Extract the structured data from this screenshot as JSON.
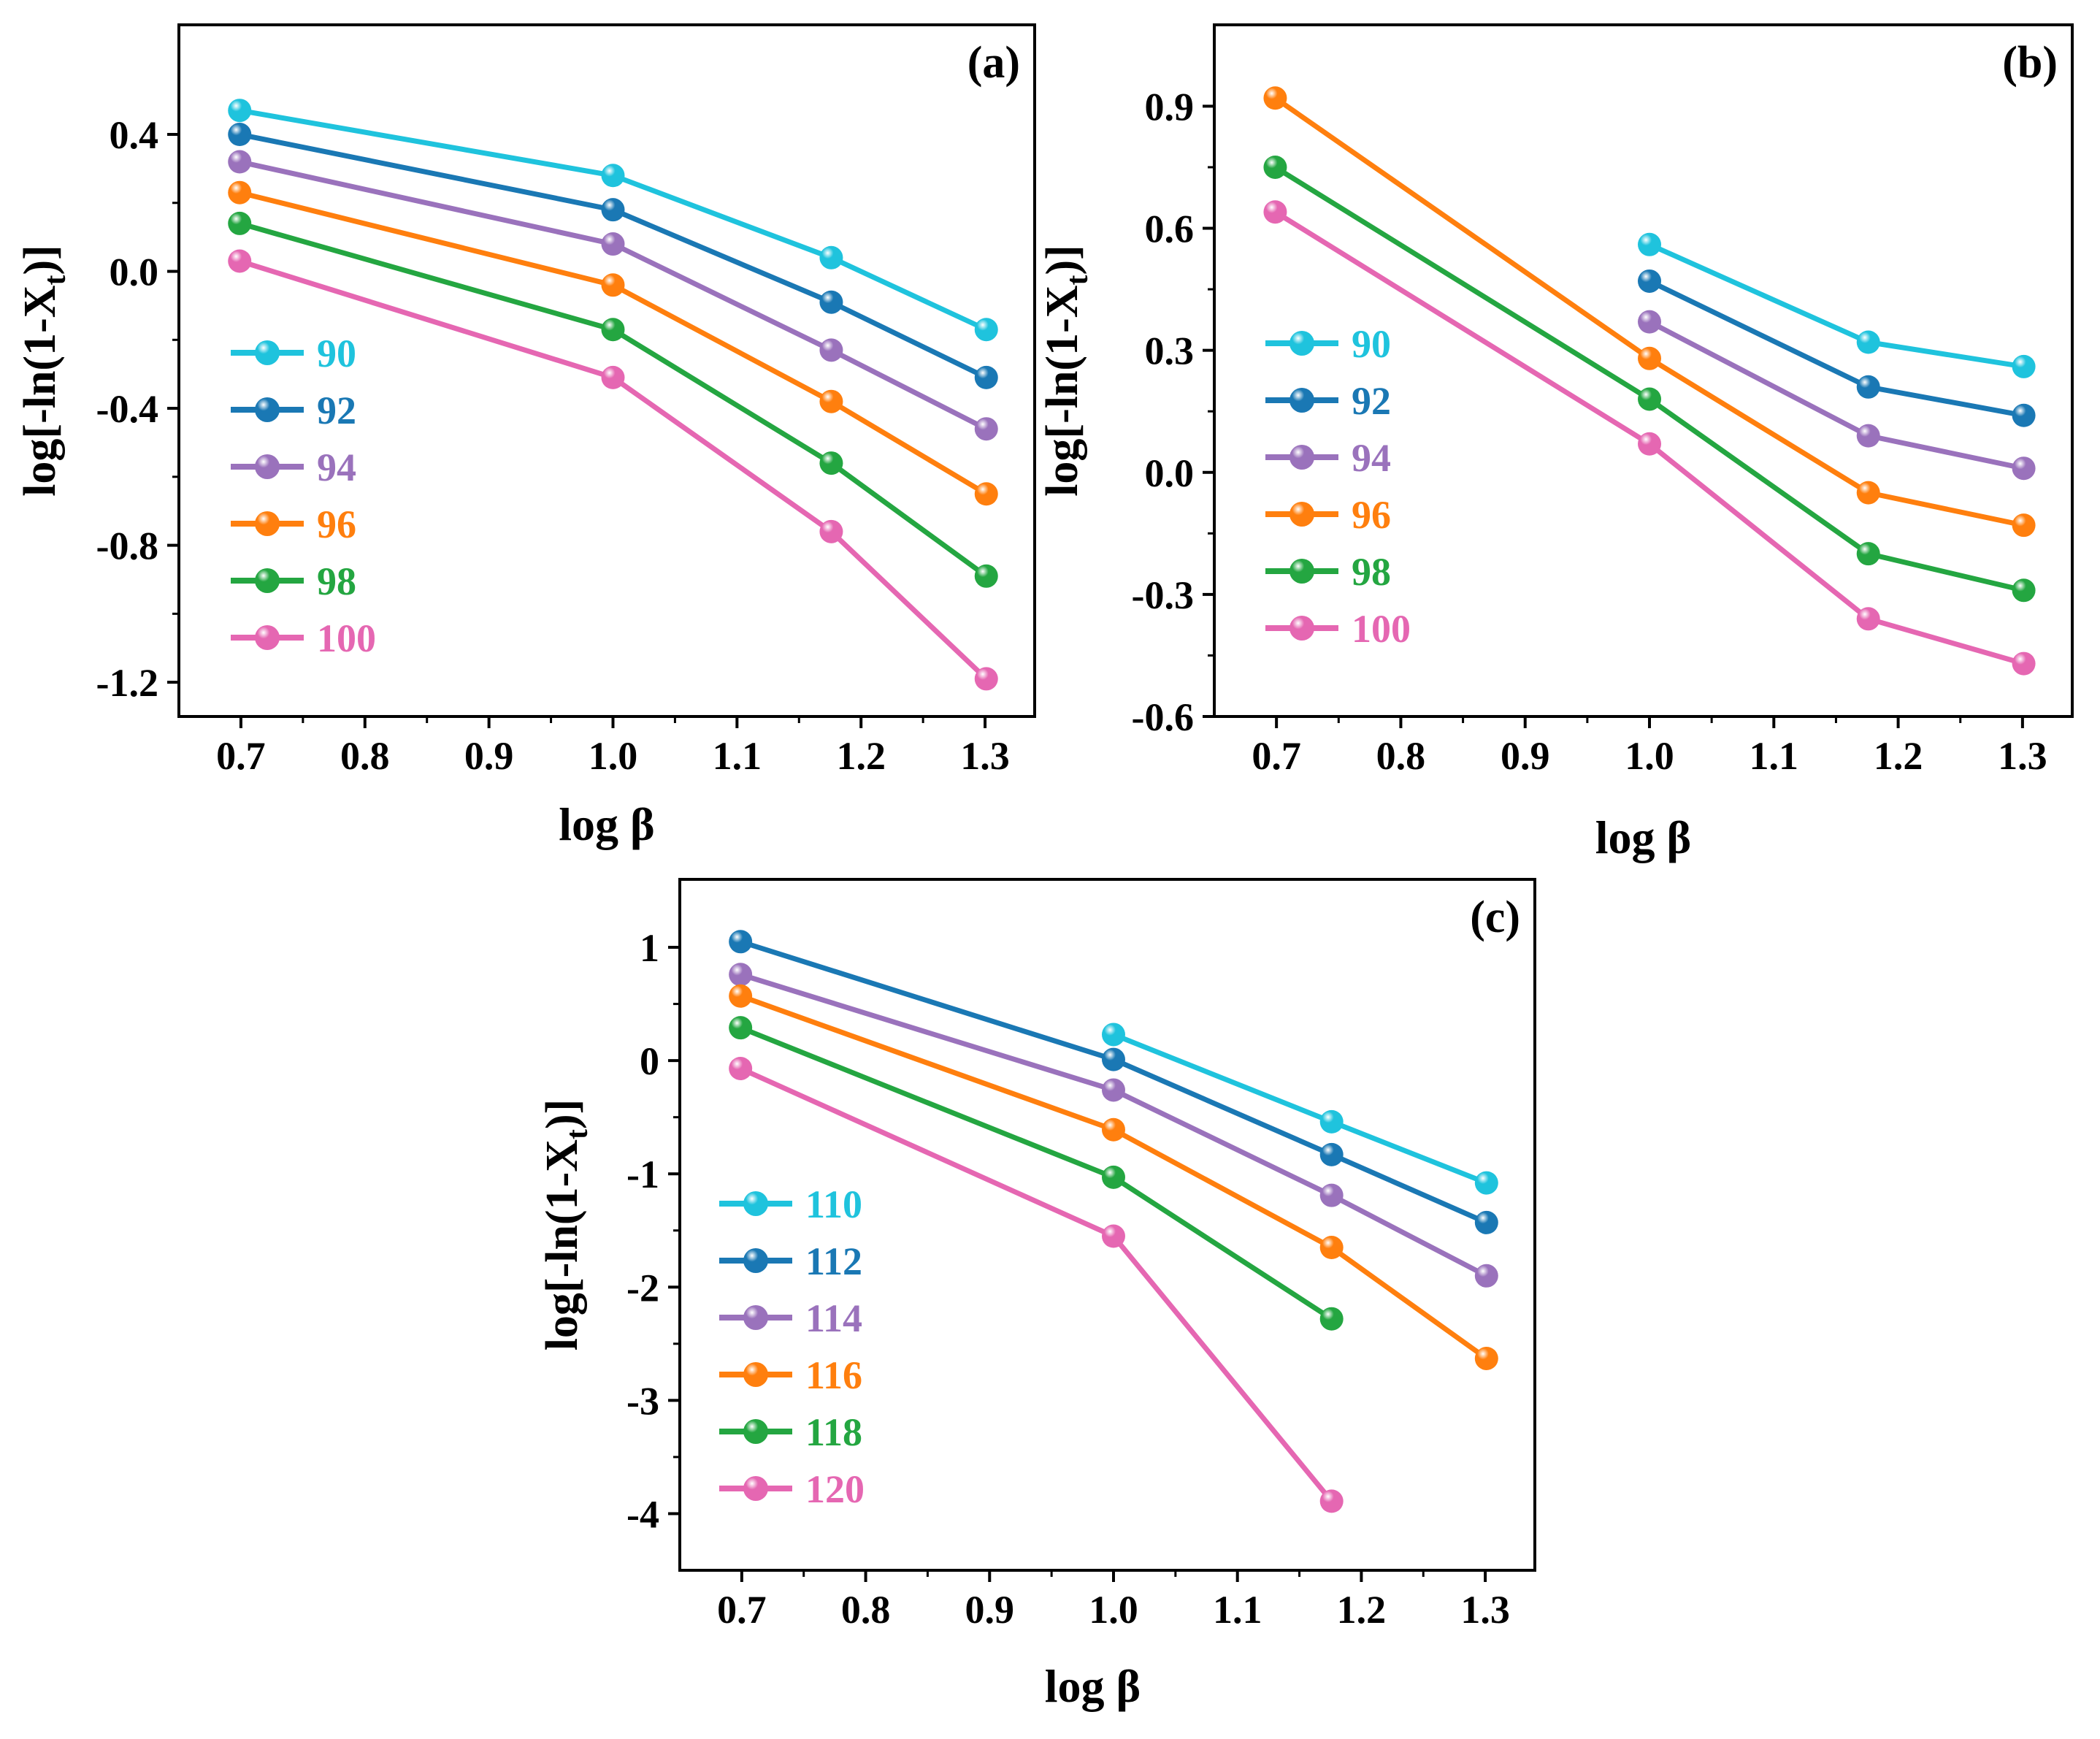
{
  "chart_data": [
    {
      "panel_label": "(a)",
      "type": "line",
      "xlabel": "log β",
      "ylabel_main": "log[-ln(1-X",
      "ylabel_sub": "t",
      "ylabel_end": ")]",
      "xlim": [
        0.65,
        1.34
      ],
      "ylim": [
        -1.3,
        0.72
      ],
      "xticks": [
        0.7,
        0.8,
        0.9,
        1.0,
        1.1,
        1.2,
        1.3
      ],
      "xtick_labels": [
        "0.7",
        "0.8",
        "0.9",
        "1.0",
        "1.1",
        "1.2",
        "1.3"
      ],
      "yticks": [
        0.4,
        0.0,
        -0.4,
        -0.8,
        -1.2
      ],
      "ytick_labels": [
        "0.4",
        "0.0",
        "-0.4",
        "-0.8",
        "-1.2"
      ],
      "legend_position": "left",
      "series": [
        {
          "name": "90",
          "color": "#1fc3dd",
          "x": [
            0.699,
            1.0,
            1.176,
            1.301
          ],
          "y": [
            0.47,
            0.28,
            0.04,
            -0.17
          ]
        },
        {
          "name": "92",
          "color": "#1a78b4",
          "x": [
            0.699,
            1.0,
            1.176,
            1.301
          ],
          "y": [
            0.4,
            0.18,
            -0.09,
            -0.31
          ]
        },
        {
          "name": "94",
          "color": "#9a72bc",
          "x": [
            0.699,
            1.0,
            1.176,
            1.301
          ],
          "y": [
            0.32,
            0.08,
            -0.23,
            -0.46
          ]
        },
        {
          "name": "96",
          "color": "#ff7f0e",
          "x": [
            0.699,
            1.0,
            1.176,
            1.301
          ],
          "y": [
            0.23,
            -0.04,
            -0.38,
            -0.65
          ]
        },
        {
          "name": "98",
          "color": "#24a641",
          "x": [
            0.699,
            1.0,
            1.176,
            1.301
          ],
          "y": [
            0.14,
            -0.17,
            -0.56,
            -0.89
          ]
        },
        {
          "name": "100",
          "color": "#e567b2",
          "x": [
            0.699,
            1.0,
            1.176,
            1.301
          ],
          "y": [
            0.03,
            -0.31,
            -0.76,
            -1.19
          ]
        }
      ]
    },
    {
      "panel_label": "(b)",
      "type": "line",
      "xlabel": "log β",
      "ylabel_main": "log[-ln(1-X",
      "ylabel_sub": "t",
      "ylabel_end": ")]",
      "xlim": [
        0.65,
        1.34
      ],
      "ylim": [
        -0.6,
        1.1
      ],
      "xticks": [
        0.7,
        0.8,
        0.9,
        1.0,
        1.1,
        1.2,
        1.3
      ],
      "xtick_labels": [
        "0.7",
        "0.8",
        "0.9",
        "1.0",
        "1.1",
        "1.2",
        "1.3"
      ],
      "yticks": [
        0.9,
        0.6,
        0.3,
        0.0,
        -0.3,
        -0.6
      ],
      "ytick_labels": [
        "0.9",
        "0.6",
        "0.3",
        "0.0",
        "-0.3",
        "-0.6"
      ],
      "legend_position": "left",
      "series": [
        {
          "name": "90",
          "color": "#1fc3dd",
          "x": [
            1.0,
            1.176,
            1.301
          ],
          "y": [
            0.56,
            0.32,
            0.26
          ]
        },
        {
          "name": "92",
          "color": "#1a78b4",
          "x": [
            1.0,
            1.176,
            1.301
          ],
          "y": [
            0.47,
            0.21,
            0.14
          ]
        },
        {
          "name": "94",
          "color": "#9a72bc",
          "x": [
            1.0,
            1.176,
            1.301
          ],
          "y": [
            0.37,
            0.09,
            0.01
          ]
        },
        {
          "name": "96",
          "color": "#ff7f0e",
          "x": [
            0.699,
            1.0,
            1.176,
            1.301
          ],
          "y": [
            0.92,
            0.28,
            -0.05,
            -0.13
          ]
        },
        {
          "name": "98",
          "color": "#24a641",
          "x": [
            0.699,
            1.0,
            1.176,
            1.301
          ],
          "y": [
            0.75,
            0.18,
            -0.2,
            -0.29
          ]
        },
        {
          "name": "100",
          "color": "#e567b2",
          "x": [
            0.699,
            1.0,
            1.176,
            1.301
          ],
          "y": [
            0.64,
            0.07,
            -0.36,
            -0.47
          ]
        }
      ]
    },
    {
      "panel_label": "(c)",
      "type": "line",
      "xlabel": "log β",
      "ylabel_main": "log[-ln(1-X",
      "ylabel_sub": "t",
      "ylabel_end": ")]",
      "xlim": [
        0.65,
        1.34
      ],
      "ylim": [
        -4.5,
        1.6
      ],
      "xticks": [
        0.7,
        0.8,
        0.9,
        1.0,
        1.1,
        1.2,
        1.3
      ],
      "xtick_labels": [
        "0.7",
        "0.8",
        "0.9",
        "1.0",
        "1.1",
        "1.2",
        "1.3"
      ],
      "yticks": [
        1,
        0,
        -1,
        -2,
        -3,
        -4
      ],
      "ytick_labels": [
        "1",
        "0",
        "-1",
        "-2",
        "-3",
        "-4"
      ],
      "legend_position": "left",
      "series": [
        {
          "name": "110",
          "color": "#1fc3dd",
          "x": [
            1.0,
            1.176,
            1.301
          ],
          "y": [
            0.23,
            -0.54,
            -1.08
          ]
        },
        {
          "name": "112",
          "color": "#1a78b4",
          "x": [
            0.699,
            1.0,
            1.176,
            1.301
          ],
          "y": [
            1.05,
            0.01,
            -0.83,
            -1.43
          ]
        },
        {
          "name": "114",
          "color": "#9a72bc",
          "x": [
            0.699,
            1.0,
            1.176,
            1.301
          ],
          "y": [
            0.76,
            -0.26,
            -1.19,
            -1.9
          ]
        },
        {
          "name": "116",
          "color": "#ff7f0e",
          "x": [
            0.699,
            1.0,
            1.176,
            1.301
          ],
          "y": [
            0.57,
            -0.61,
            -1.65,
            -2.63
          ]
        },
        {
          "name": "118",
          "color": "#24a641",
          "x": [
            0.699,
            1.0,
            1.176
          ],
          "y": [
            0.29,
            -1.03,
            -2.28
          ]
        },
        {
          "name": "120",
          "color": "#e567b2",
          "x": [
            0.699,
            1.0,
            1.176
          ],
          "y": [
            -0.07,
            -1.55,
            -3.89
          ]
        }
      ]
    }
  ]
}
